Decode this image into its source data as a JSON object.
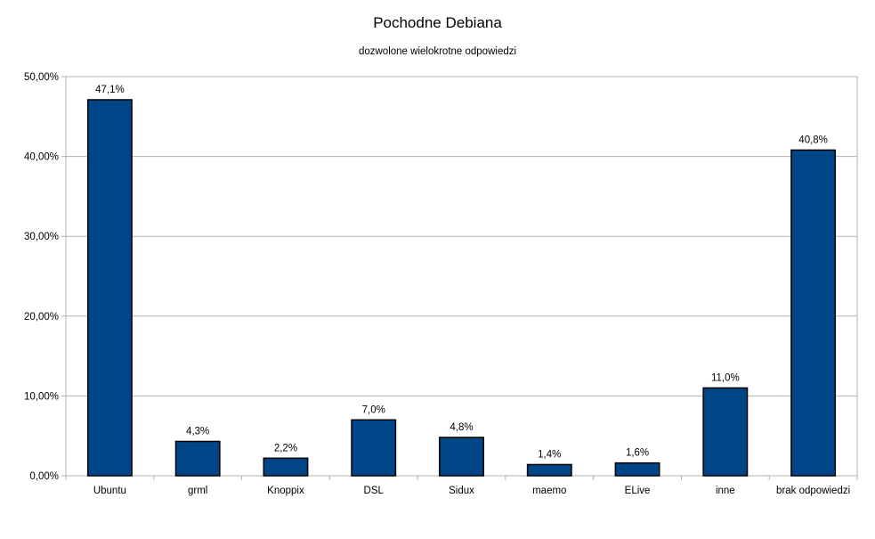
{
  "chart_data": {
    "type": "bar",
    "title": "Pochodne Debiana",
    "subtitle": "dozwolone wielokrotne odpowiedzi",
    "xlabel": "",
    "ylabel": "",
    "ylim": [
      0,
      50
    ],
    "y_ticks": [
      "0,00%",
      "10,00%",
      "20,00%",
      "30,00%",
      "40,00%",
      "50,00%"
    ],
    "grid": true,
    "legend": "none",
    "bar_color": "#004586",
    "categories": [
      "Ubuntu",
      "grml",
      "Knoppix",
      "DSL",
      "Sidux",
      "maemo",
      "ELive",
      "inne",
      "brak odpowiedzi"
    ],
    "values": [
      47.1,
      4.3,
      2.2,
      7.0,
      4.8,
      1.4,
      1.6,
      11.0,
      40.8
    ],
    "value_labels": [
      "47,1%",
      "4,3%",
      "2,2%",
      "7,0%",
      "4,8%",
      "1,4%",
      "1,6%",
      "11,0%",
      "40,8%"
    ]
  }
}
